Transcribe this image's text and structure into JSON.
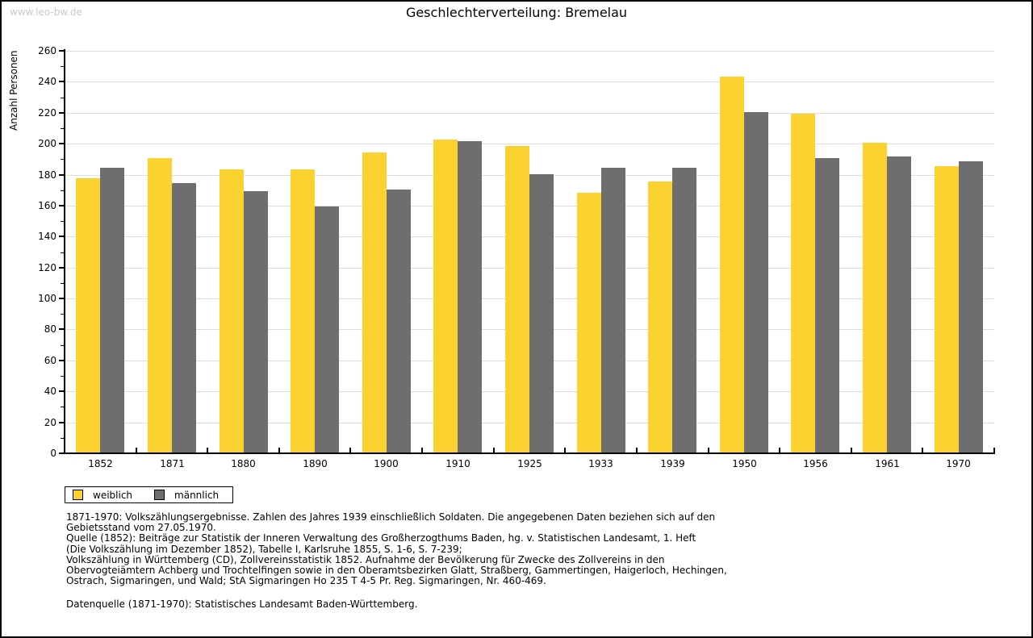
{
  "page": {
    "watermark": "www.leo-bw.de",
    "title": "Geschlechterverteilung: Bremelau"
  },
  "chart_data": {
    "type": "bar",
    "title": "Geschlechterverteilung: Bremelau",
    "xlabel": "",
    "ylabel": "Anzahl Personen",
    "categories": [
      "1852",
      "1871",
      "1880",
      "1890",
      "1900",
      "1910",
      "1925",
      "1933",
      "1939",
      "1950",
      "1956",
      "1961",
      "1970"
    ],
    "series": [
      {
        "name": "weiblich",
        "color": "#FCD231",
        "values": [
          177,
          190,
          183,
          183,
          194,
          202,
          198,
          168,
          175,
          243,
          219,
          200,
          185
        ]
      },
      {
        "name": "männlich",
        "color": "#6E6E6E",
        "values": [
          184,
          174,
          169,
          159,
          170,
          201,
          180,
          184,
          184,
          220,
          190,
          191,
          188
        ]
      }
    ],
    "ylim": [
      0,
      260
    ],
    "ytick_major_step": 20,
    "ytick_minor_step": 10,
    "grid": true,
    "legend_position": "bottom-left",
    "colors": {
      "gridline": "#DCDCDC",
      "axis": "#000000",
      "watermark": "#C9C9C9",
      "background": "#FFFFFF"
    }
  },
  "footnotes": {
    "lines": [
      "1871-1970: Volkszählungsergebnisse. Zahlen des Jahres 1939 einschließlich Soldaten. Die angegebenen Daten beziehen sich auf den",
      "Gebietsstand vom 27.05.1970.",
      "Quelle (1852): Beiträge zur Statistik der Inneren Verwaltung des Großherzogthums Baden, hg. v. Statistischen Landesamt, 1. Heft",
      "(Die Volkszählung im Dezember 1852), Tabelle I, Karlsruhe 1855, S. 1-6, S. 7-239;",
      "Volkszählung in Württemberg (CD), Zollvereinsstatistik 1852. Aufnahme der Bevölkerung für Zwecke des Zollvereins in den",
      "Obervogteiämtern Achberg und Trochtelfingen sowie in den Oberamtsbezirken Glatt, Straßberg, Gammertingen, Haigerloch, Hechingen,",
      "Ostrach, Sigmaringen, und Wald; StA Sigmaringen Ho 235 T 4-5 Pr. Reg. Sigmaringen, Nr. 460-469."
    ]
  },
  "datasource": "Datenquelle (1871-1970): Statistisches Landesamt Baden-Württemberg."
}
